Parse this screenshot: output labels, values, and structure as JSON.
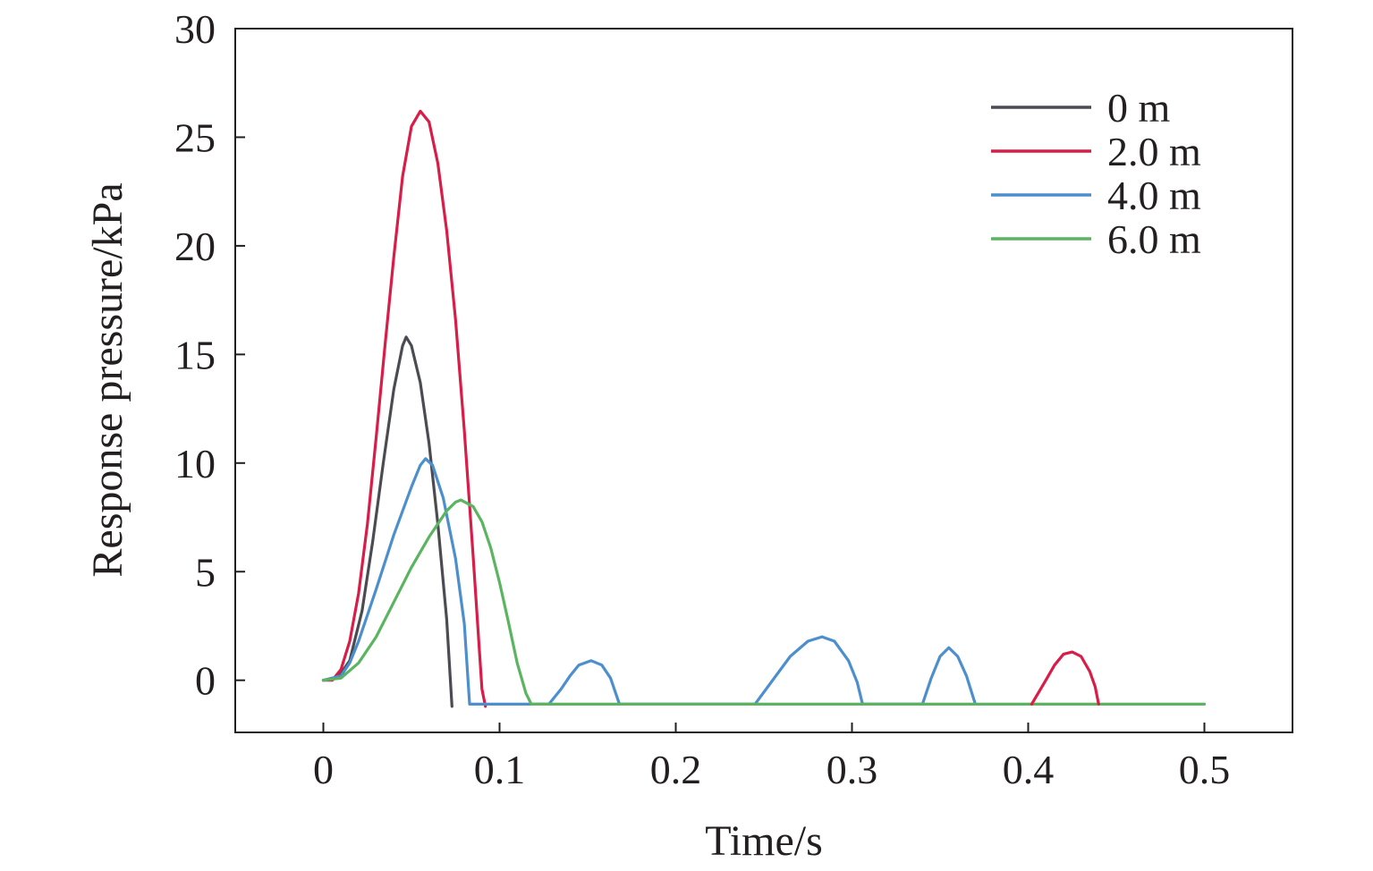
{
  "chart_data": {
    "type": "line",
    "title": "",
    "xlabel": "Time/s",
    "ylabel": "Response pressure/kPa",
    "xlim": [
      -0.05,
      0.55
    ],
    "ylim": [
      -2.4,
      30
    ],
    "xticks": [
      0,
      0.1,
      0.2,
      0.3,
      0.4,
      0.5
    ],
    "xtick_labels": [
      "0",
      "0.1",
      "0.2",
      "0.3",
      "0.4",
      "0.5"
    ],
    "yticks": [
      0,
      5,
      10,
      15,
      20,
      25,
      30
    ],
    "ytick_labels": [
      "0",
      "5",
      "10",
      "15",
      "20",
      "25",
      "30"
    ],
    "grid": false,
    "legend_position": "top-right",
    "series": [
      {
        "name": "0 m",
        "color": "#4a4c52",
        "points": [
          [
            0,
            0
          ],
          [
            0.008,
            0.1
          ],
          [
            0.015,
            0.9
          ],
          [
            0.022,
            3.2
          ],
          [
            0.028,
            6.4
          ],
          [
            0.034,
            10
          ],
          [
            0.04,
            13.4
          ],
          [
            0.045,
            15.4
          ],
          [
            0.047,
            15.8
          ],
          [
            0.05,
            15.4
          ],
          [
            0.055,
            13.7
          ],
          [
            0.06,
            10.9
          ],
          [
            0.065,
            7.2
          ],
          [
            0.07,
            2.8
          ],
          [
            0.073,
            -1.2
          ]
        ]
      },
      {
        "name": "2.0 m",
        "color": "#d81e48",
        "points": [
          [
            0,
            0
          ],
          [
            0.005,
            0
          ],
          [
            0.01,
            0.5
          ],
          [
            0.015,
            1.8
          ],
          [
            0.02,
            4
          ],
          [
            0.025,
            7.2
          ],
          [
            0.03,
            11.2
          ],
          [
            0.035,
            15.4
          ],
          [
            0.04,
            19.5
          ],
          [
            0.045,
            23.2
          ],
          [
            0.05,
            25.5
          ],
          [
            0.055,
            26.2
          ],
          [
            0.06,
            25.7
          ],
          [
            0.065,
            23.8
          ],
          [
            0.07,
            20.7
          ],
          [
            0.075,
            16.6
          ],
          [
            0.08,
            11.5
          ],
          [
            0.085,
            5.7
          ],
          [
            0.09,
            -0.4
          ],
          [
            0.092,
            -1.2
          ]
        ]
      },
      {
        "name": "4.0 m",
        "color": "#4d8fcd",
        "points": [
          [
            0,
            0
          ],
          [
            0.01,
            0.2
          ],
          [
            0.015,
            0.8
          ],
          [
            0.02,
            1.8
          ],
          [
            0.03,
            4.2
          ],
          [
            0.04,
            6.7
          ],
          [
            0.05,
            8.9
          ],
          [
            0.055,
            9.9
          ],
          [
            0.058,
            10.2
          ],
          [
            0.062,
            9.9
          ],
          [
            0.068,
            8.4
          ],
          [
            0.075,
            5.6
          ],
          [
            0.08,
            2.6
          ],
          [
            0.083,
            -1.1
          ],
          [
            0.128,
            -1.1
          ],
          [
            0.135,
            -0.4
          ],
          [
            0.14,
            0.2
          ],
          [
            0.145,
            0.7
          ],
          [
            0.152,
            0.9
          ],
          [
            0.158,
            0.7
          ],
          [
            0.163,
            0.1
          ],
          [
            0.168,
            -1.1
          ],
          [
            0.245,
            -1.1
          ],
          [
            0.255,
            0
          ],
          [
            0.265,
            1.1
          ],
          [
            0.275,
            1.8
          ],
          [
            0.283,
            2
          ],
          [
            0.29,
            1.8
          ],
          [
            0.298,
            0.9
          ],
          [
            0.303,
            -0.1
          ],
          [
            0.306,
            -1.1
          ],
          [
            0.34,
            -1.1
          ],
          [
            0.345,
            0.1
          ],
          [
            0.35,
            1.1
          ],
          [
            0.355,
            1.5
          ],
          [
            0.36,
            1.1
          ],
          [
            0.365,
            0.2
          ],
          [
            0.37,
            -1.1
          ]
        ]
      },
      {
        "name": "6.0 m",
        "color": "#5ab460",
        "points": [
          [
            0,
            0
          ],
          [
            0.01,
            0.1
          ],
          [
            0.02,
            0.8
          ],
          [
            0.03,
            2
          ],
          [
            0.04,
            3.6
          ],
          [
            0.05,
            5.2
          ],
          [
            0.06,
            6.6
          ],
          [
            0.07,
            7.8
          ],
          [
            0.075,
            8.2
          ],
          [
            0.078,
            8.3
          ],
          [
            0.085,
            8
          ],
          [
            0.09,
            7.3
          ],
          [
            0.095,
            6.1
          ],
          [
            0.1,
            4.5
          ],
          [
            0.105,
            2.7
          ],
          [
            0.11,
            0.8
          ],
          [
            0.115,
            -0.6
          ],
          [
            0.118,
            -1.1
          ],
          [
            0.5,
            -1.1
          ]
        ]
      },
      {
        "name": "2.0 m",
        "color": "#d81e48",
        "legend": false,
        "points": [
          [
            0.402,
            -1.1
          ],
          [
            0.41,
            0
          ],
          [
            0.415,
            0.7
          ],
          [
            0.42,
            1.2
          ],
          [
            0.425,
            1.3
          ],
          [
            0.43,
            1.1
          ],
          [
            0.435,
            0.4
          ],
          [
            0.438,
            -0.3
          ],
          [
            0.44,
            -1.1
          ]
        ]
      }
    ]
  }
}
